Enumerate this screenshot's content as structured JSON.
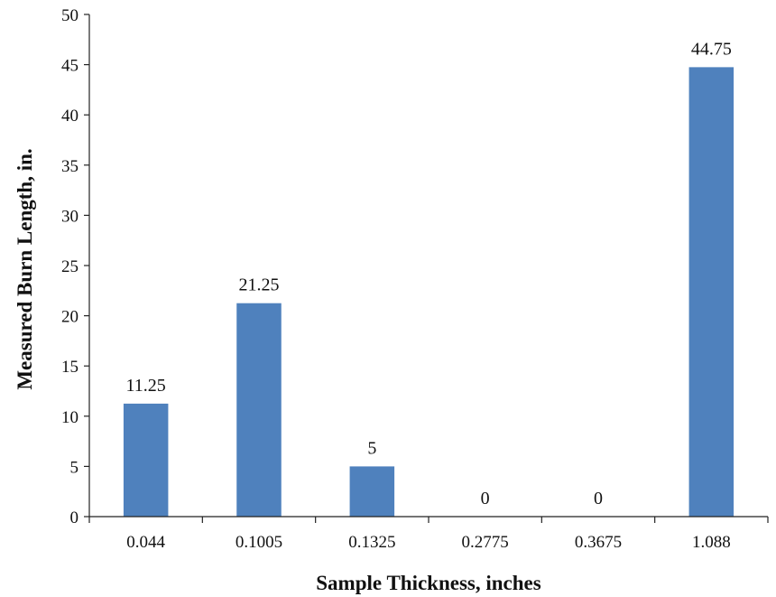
{
  "chart_data": {
    "type": "bar",
    "categories": [
      "0.044",
      "0.1005",
      "0.1325",
      "0.2775",
      "0.3675",
      "1.088"
    ],
    "values": [
      11.25,
      21.25,
      5,
      0,
      0,
      44.75
    ],
    "data_labels": [
      "11.25",
      "21.25",
      "5",
      "0",
      "0",
      "44.75"
    ],
    "xlabel": "Sample Thickness, inches",
    "ylabel": "Measured Burn Length, in.",
    "ylim": [
      0,
      50
    ],
    "yticks": [
      "0",
      "5",
      "10",
      "15",
      "20",
      "25",
      "30",
      "35",
      "40",
      "45",
      "50"
    ],
    "bar_color": "#4F81BD",
    "grid": false,
    "legend": "none"
  }
}
